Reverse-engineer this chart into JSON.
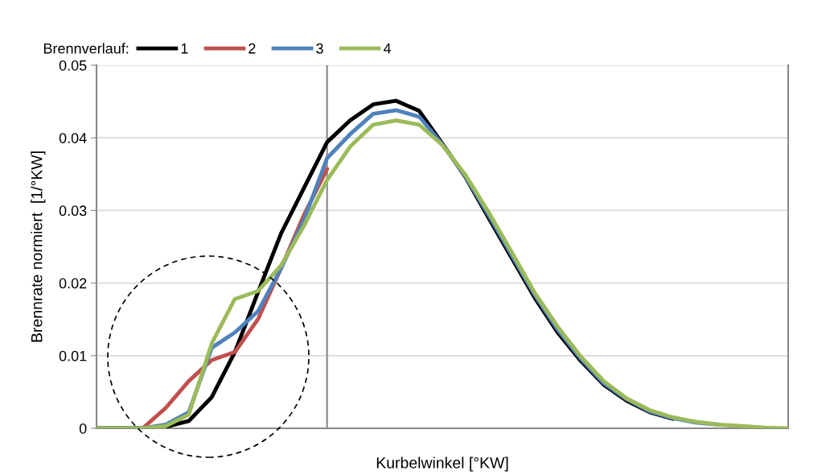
{
  "chart_data": {
    "type": "line",
    "xlabel": "Kurbelwinkel [°KW]",
    "ylabel": "Brennrate normiert  [1/°KW]",
    "legend_title": "Brennverlauf:",
    "legend": "top",
    "grid": "y",
    "marker": "none",
    "line_style": "solid",
    "categories": [
      null,
      null,
      null,
      null,
      null,
      null,
      null,
      null,
      null,
      null,
      null,
      null,
      null,
      null,
      null,
      null,
      null,
      null,
      null,
      null,
      null,
      null,
      null,
      null,
      null,
      null,
      null,
      null,
      null,
      null,
      null
    ],
    "ylim": [
      0,
      0.05
    ],
    "yticks": [
      0,
      0.01,
      0.02,
      0.03,
      0.04,
      0.05
    ],
    "series": [
      {
        "name": "1",
        "color": "#000000",
        "values": [
          0,
          0,
          0,
          0.0002,
          0.001,
          0.0043,
          0.0105,
          0.0187,
          0.0268,
          0.0331,
          0.0394,
          0.0424,
          0.0446,
          0.0451,
          0.0437,
          0.0392,
          0.0346,
          0.029,
          0.0235,
          0.018,
          0.0132,
          0.0093,
          0.006,
          0.0038,
          0.0022,
          0.0013,
          null,
          null,
          null,
          null,
          null
        ]
      },
      {
        "name": "2",
        "color": "#c0504d",
        "values": [
          null,
          null,
          0,
          0.0028,
          0.0065,
          0.0094,
          0.0105,
          0.015,
          0.022,
          0.0294,
          0.0357,
          null,
          null,
          null,
          null,
          null,
          null,
          null,
          null,
          null,
          null,
          null,
          null,
          null,
          null,
          null,
          null,
          null,
          null,
          null,
          null
        ]
      },
      {
        "name": "3",
        "color": "#4f81bd",
        "values": [
          0,
          0,
          0,
          0.0005,
          0.0022,
          0.0111,
          0.0132,
          0.0161,
          0.022,
          0.0287,
          0.0372,
          0.0405,
          0.0433,
          0.0438,
          0.0429,
          0.0391,
          0.0347,
          0.0294,
          0.0239,
          0.0184,
          0.0136,
          0.0096,
          0.0062,
          0.004,
          0.0023,
          0.0014,
          0.0008,
          0.0005,
          null,
          null,
          null
        ]
      },
      {
        "name": "4",
        "color": "#9bbb59",
        "values": [
          0,
          0,
          0,
          0.0003,
          0.0019,
          0.0117,
          0.0178,
          0.0189,
          0.0224,
          0.0279,
          0.0342,
          0.0388,
          0.0418,
          0.0424,
          0.0418,
          0.039,
          0.0349,
          0.0298,
          0.0243,
          0.0187,
          0.014,
          0.0099,
          0.0065,
          0.0041,
          0.0025,
          0.0015,
          0.0009,
          0.0005,
          0.0003,
          0.0001,
          0
        ]
      }
    ]
  }
}
